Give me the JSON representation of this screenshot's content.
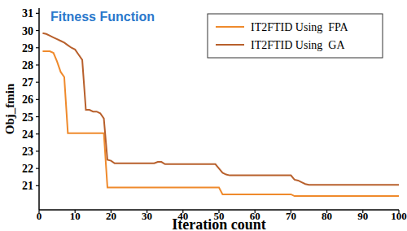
{
  "chart_data": {
    "type": "line",
    "title": "Fitness Function",
    "x_label": "Iteration count",
    "y_label": "Obj_fmin",
    "xlim": [
      0,
      100
    ],
    "xticks": [
      0,
      10,
      20,
      30,
      40,
      50,
      60,
      70,
      80,
      90,
      100
    ],
    "ylim": [
      19.6,
      31.3
    ],
    "yticks": [
      21,
      22,
      23,
      24,
      25,
      26,
      27,
      28,
      29,
      30,
      31
    ],
    "grid": false,
    "legend": "top-right",
    "x": [
      1,
      2,
      3,
      4,
      5,
      6,
      7,
      8,
      9,
      10,
      11,
      12,
      13,
      14,
      15,
      16,
      17,
      18,
      19,
      20,
      21,
      22,
      23,
      24,
      25,
      26,
      27,
      28,
      29,
      30,
      31,
      32,
      33,
      34,
      35,
      36,
      37,
      38,
      39,
      40,
      41,
      42,
      43,
      44,
      45,
      46,
      47,
      48,
      49,
      50,
      51,
      52,
      53,
      54,
      55,
      56,
      57,
      58,
      59,
      60,
      61,
      62,
      63,
      64,
      65,
      66,
      67,
      68,
      69,
      70,
      71,
      72,
      73,
      74,
      75,
      76,
      77,
      78,
      79,
      80,
      81,
      82,
      83,
      84,
      85,
      86,
      87,
      88,
      89,
      90,
      91,
      92,
      93,
      94,
      95,
      96,
      97,
      98,
      99,
      100
    ],
    "series": [
      {
        "name": "IT2FTID Using  FPA",
        "color": "#ef8a2c",
        "values": [
          28.8,
          28.8,
          28.8,
          28.7,
          28.2,
          27.6,
          27.3,
          24.05,
          24.05,
          24.05,
          24.05,
          24.05,
          24.05,
          24.05,
          24.05,
          24.05,
          24.05,
          24.05,
          20.9,
          20.9,
          20.9,
          20.9,
          20.9,
          20.9,
          20.9,
          20.9,
          20.9,
          20.9,
          20.9,
          20.9,
          20.9,
          20.9,
          20.9,
          20.9,
          20.9,
          20.9,
          20.9,
          20.9,
          20.9,
          20.9,
          20.9,
          20.9,
          20.9,
          20.9,
          20.9,
          20.9,
          20.9,
          20.9,
          20.9,
          20.9,
          20.5,
          20.5,
          20.5,
          20.5,
          20.5,
          20.5,
          20.5,
          20.5,
          20.5,
          20.5,
          20.5,
          20.5,
          20.5,
          20.5,
          20.5,
          20.5,
          20.5,
          20.5,
          20.5,
          20.5,
          20.4,
          20.4,
          20.4,
          20.4,
          20.4,
          20.4,
          20.4,
          20.4,
          20.4,
          20.4,
          20.4,
          20.4,
          20.4,
          20.4,
          20.4,
          20.4,
          20.4,
          20.4,
          20.4,
          20.4,
          20.4,
          20.4,
          20.4,
          20.4,
          20.4,
          20.4,
          20.4,
          20.4,
          20.4,
          20.4
        ]
      },
      {
        "name": "IT2FTID Using  GA",
        "color": "#b8602c",
        "values": [
          29.85,
          29.8,
          29.7,
          29.6,
          29.5,
          29.4,
          29.3,
          29.15,
          29.0,
          28.9,
          28.6,
          28.3,
          25.4,
          25.4,
          25.3,
          25.3,
          25.2,
          24.9,
          22.5,
          22.45,
          22.3,
          22.3,
          22.3,
          22.3,
          22.3,
          22.3,
          22.3,
          22.3,
          22.3,
          22.3,
          22.3,
          22.3,
          22.38,
          22.38,
          22.25,
          22.25,
          22.25,
          22.25,
          22.25,
          22.25,
          22.25,
          22.25,
          22.25,
          22.25,
          22.25,
          22.25,
          22.25,
          22.25,
          22.25,
          22.0,
          21.75,
          21.65,
          21.6,
          21.6,
          21.6,
          21.6,
          21.6,
          21.6,
          21.6,
          21.6,
          21.6,
          21.6,
          21.6,
          21.6,
          21.6,
          21.6,
          21.6,
          21.6,
          21.6,
          21.6,
          21.35,
          21.3,
          21.2,
          21.1,
          21.05,
          21.05,
          21.05,
          21.05,
          21.05,
          21.05,
          21.05,
          21.05,
          21.05,
          21.05,
          21.05,
          21.05,
          21.05,
          21.05,
          21.05,
          21.05,
          21.05,
          21.05,
          21.05,
          21.05,
          21.05,
          21.05,
          21.05,
          21.05,
          21.05,
          21.05
        ]
      }
    ]
  }
}
